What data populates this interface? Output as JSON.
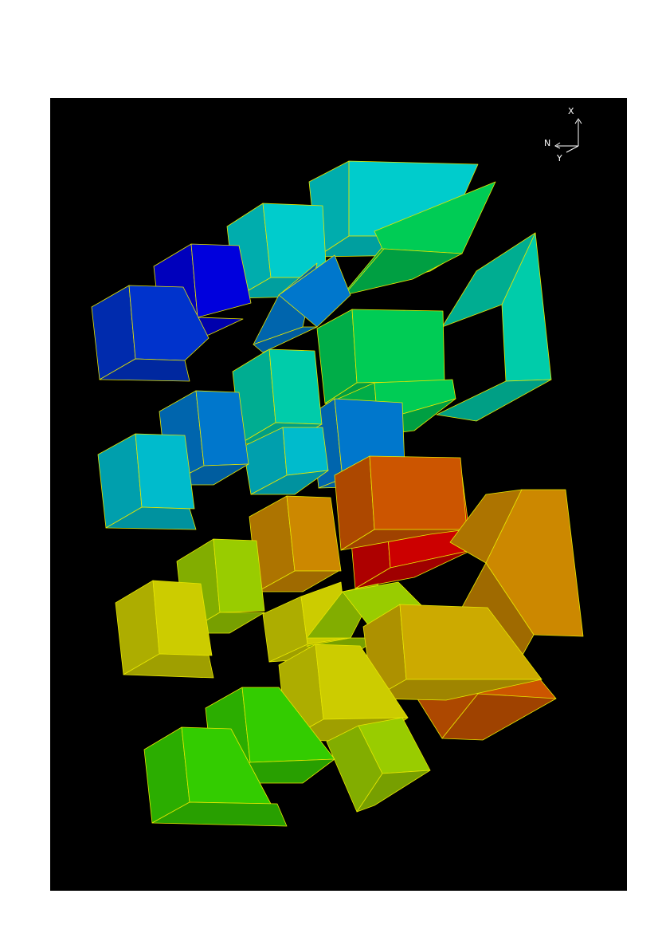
{
  "viewer": {
    "background_color": "#000000",
    "page_color": "#ffffff",
    "edge_color": "#e6e600"
  },
  "axis_triad": {
    "labels": [
      "X",
      "N",
      "Y"
    ]
  },
  "colors": {
    "blue": "#0033cc",
    "royal": "#0000dd",
    "azure": "#0077cc",
    "cyan": "#00bbcc",
    "teal": "#00cccc",
    "aqua_green": "#00ccaa",
    "green": "#00cc55",
    "lime": "#33cc00",
    "yellow_green": "#99cc00",
    "yellow": "#cccc00",
    "gold": "#ccaa00",
    "amber": "#cc8800",
    "orange": "#cc5500",
    "red": "#cc0000"
  }
}
